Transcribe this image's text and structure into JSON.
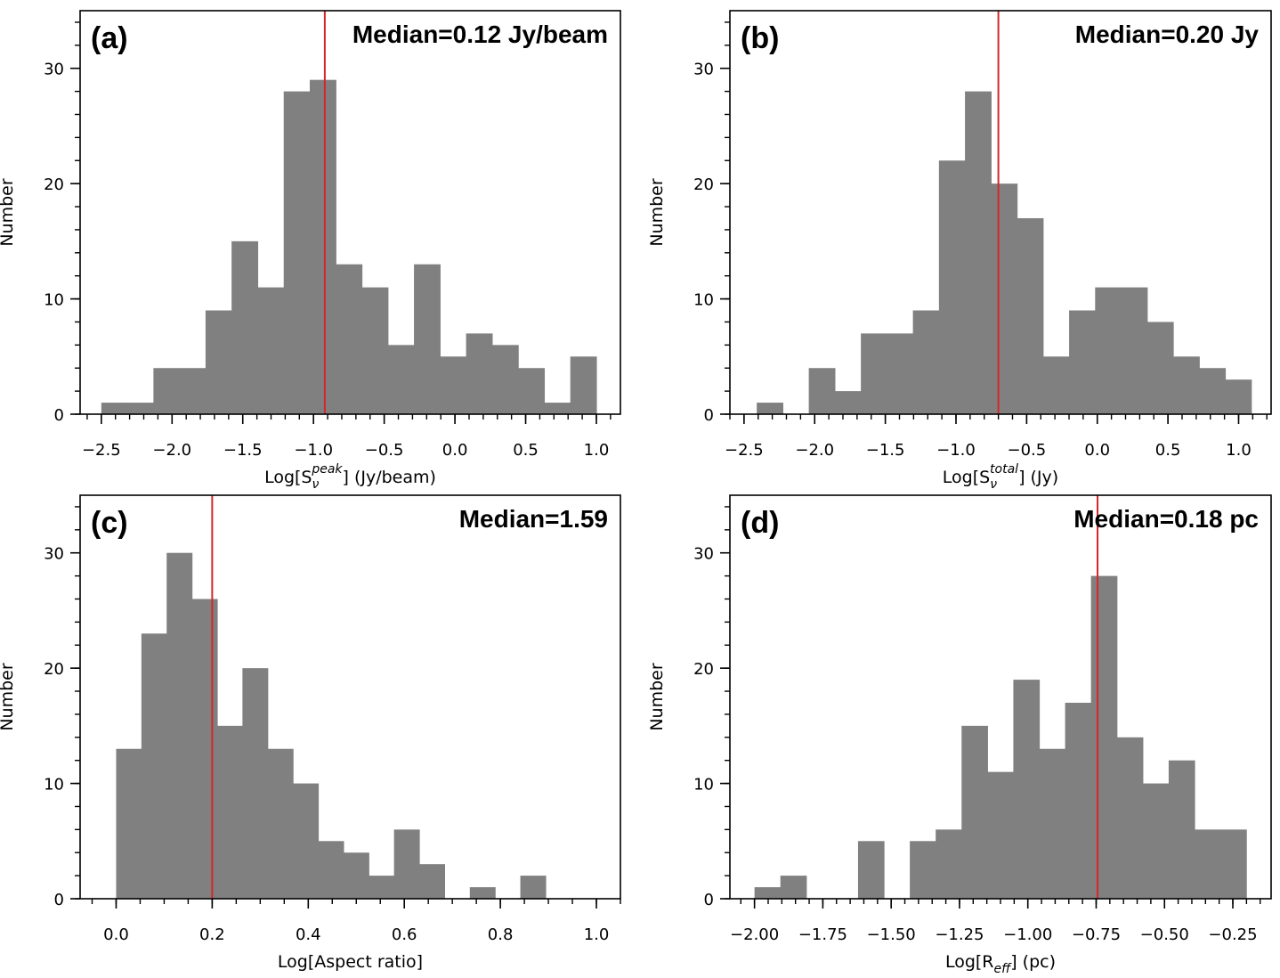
{
  "colors": {
    "bar": "#808080",
    "median_line": "#d62728",
    "axis": "#000000"
  },
  "chart_data": [
    {
      "type": "bar",
      "panel_label": "(a)",
      "annotation": "Median=0.12 Jy/beam",
      "xlabel_parts": [
        "Log[S",
        "ν",
        "peak",
        "] (Jy/beam)"
      ],
      "ylabel": "Number",
      "xlim": [
        -2.65,
        1.17
      ],
      "ylim": [
        0,
        35
      ],
      "xticks": [
        -2.5,
        -2.0,
        -1.5,
        -1.0,
        -0.5,
        0.0,
        0.5,
        1.0
      ],
      "xtick_labels": [
        "−2.5",
        "−2.0",
        "−1.5",
        "−1.0",
        "−0.5",
        "0.0",
        "0.5",
        "1.0"
      ],
      "x_minor_step": 0.1,
      "yticks": [
        0,
        10,
        20,
        30
      ],
      "ytick_labels": [
        "0",
        "10",
        "20",
        "30"
      ],
      "y_minor_step": 2,
      "bin_start": -2.5,
      "bin_width": 0.1842,
      "values": [
        1,
        1,
        4,
        4,
        9,
        15,
        11,
        28,
        29,
        13,
        11,
        6,
        13,
        5,
        7,
        6,
        4,
        1,
        5
      ],
      "median_x": -0.92
    },
    {
      "type": "bar",
      "panel_label": "(b)",
      "annotation": "Median=0.20 Jy",
      "xlabel_parts": [
        "Log[S",
        "ν",
        "total",
        "] (Jy)"
      ],
      "ylabel": "Number",
      "xlim": [
        -2.6,
        1.23
      ],
      "ylim": [
        0,
        35
      ],
      "xticks": [
        -2.5,
        -2.0,
        -1.5,
        -1.0,
        -0.5,
        0.0,
        0.5,
        1.0
      ],
      "xtick_labels": [
        "−2.5",
        "−2.0",
        "−1.5",
        "−1.0",
        "−0.5",
        "0.0",
        "0.5",
        "1.0"
      ],
      "x_minor_step": 0.1,
      "yticks": [
        0,
        10,
        20,
        30
      ],
      "ytick_labels": [
        "0",
        "10",
        "20",
        "30"
      ],
      "y_minor_step": 2,
      "bin_start": -2.41,
      "bin_width": 0.1842,
      "values": [
        1,
        0,
        4,
        2,
        7,
        7,
        9,
        22,
        28,
        20,
        17,
        5,
        9,
        11,
        11,
        8,
        5,
        4,
        3
      ],
      "median_x": -0.7
    },
    {
      "type": "bar",
      "panel_label": "(c)",
      "annotation": "Median=1.59",
      "xlabel_parts": [
        "Log[Aspect ratio]"
      ],
      "ylabel": "Number",
      "xlim": [
        -0.075,
        1.05
      ],
      "ylim": [
        0,
        35
      ],
      "xticks": [
        0.0,
        0.2,
        0.4,
        0.6,
        0.8,
        1.0
      ],
      "xtick_labels": [
        "0.0",
        "0.2",
        "0.4",
        "0.6",
        "0.8",
        "1.0"
      ],
      "x_minor_step": 0.05,
      "yticks": [
        0,
        10,
        20,
        30
      ],
      "ytick_labels": [
        "0",
        "10",
        "20",
        "30"
      ],
      "y_minor_step": 2,
      "bin_start": 0.0,
      "bin_width": 0.0526,
      "values": [
        13,
        23,
        30,
        26,
        15,
        20,
        13,
        10,
        5,
        4,
        2,
        6,
        3,
        0,
        1,
        0,
        2,
        0,
        0
      ],
      "median_x": 0.2
    },
    {
      "type": "bar",
      "panel_label": "(d)",
      "annotation": "Median=0.18 pc",
      "xlabel_parts": [
        "Log[R",
        "eff",
        "] (pc)"
      ],
      "ylabel": "Number",
      "xlim": [
        -2.09,
        -0.11
      ],
      "ylim": [
        0,
        35
      ],
      "xticks": [
        -2.0,
        -1.75,
        -1.5,
        -1.25,
        -1.0,
        -0.75,
        -0.5,
        -0.25
      ],
      "xtick_labels": [
        "−2.00",
        "−1.75",
        "−1.50",
        "−1.25",
        "−1.00",
        "−0.75",
        "−0.50",
        "−0.25"
      ],
      "x_minor_step": 0.05,
      "yticks": [
        0,
        10,
        20,
        30
      ],
      "ytick_labels": [
        "0",
        "10",
        "20",
        "30"
      ],
      "y_minor_step": 2,
      "bin_start": -2.0,
      "bin_width": 0.0947,
      "values": [
        1,
        2,
        0,
        0,
        5,
        0,
        5,
        6,
        15,
        11,
        19,
        13,
        17,
        28,
        14,
        10,
        12,
        6,
        6
      ],
      "median_x": -0.745
    }
  ]
}
